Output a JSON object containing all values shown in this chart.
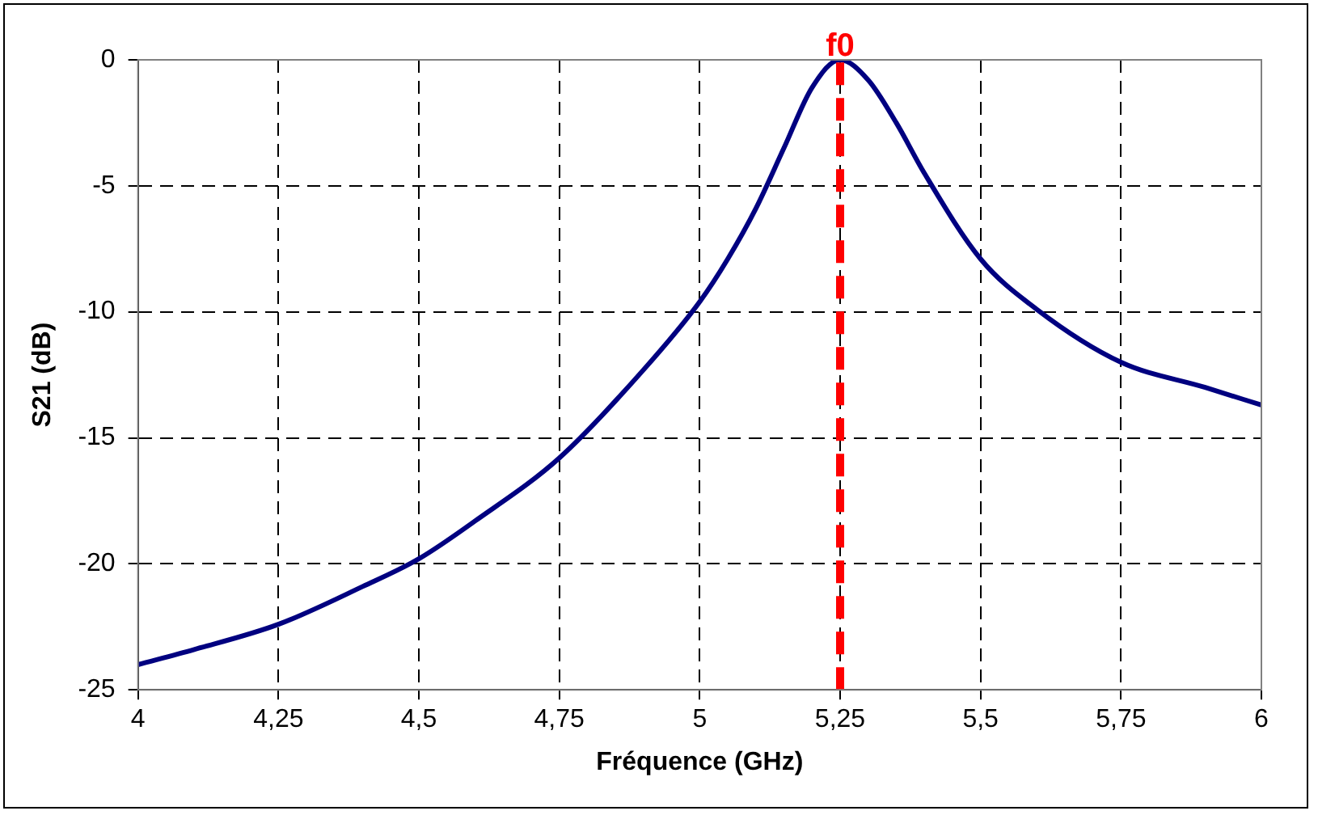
{
  "chart_data": {
    "type": "line",
    "xlabel": "Fréquence (GHz)",
    "ylabel": "S21 (dB)",
    "x": [
      4,
      4.1,
      4.25,
      4.4,
      4.5,
      4.6,
      4.75,
      4.9,
      5,
      5.05,
      5.1,
      5.15,
      5.2,
      5.25,
      5.3,
      5.35,
      5.4,
      5.5,
      5.6,
      5.75,
      5.9,
      6
    ],
    "series": [
      {
        "color": "#000080",
        "values": [
          -24,
          -23.4,
          -22.4,
          -20.9,
          -19.8,
          -18.3,
          -15.8,
          -12.3,
          -9.6,
          -7.9,
          -5.9,
          -3.5,
          -1.1,
          0,
          -0.8,
          -2.5,
          -4.5,
          -7.9,
          -9.9,
          -12,
          -13,
          -13.7
        ]
      }
    ],
    "xlim": [
      4,
      6
    ],
    "xticks": [
      {
        "value": 4,
        "label": "4"
      },
      {
        "value": 4.25,
        "label": "4,25"
      },
      {
        "value": 4.5,
        "label": "4,5"
      },
      {
        "value": 4.75,
        "label": "4,75"
      },
      {
        "value": 5,
        "label": "5"
      },
      {
        "value": 5.25,
        "label": "5,25"
      },
      {
        "value": 5.5,
        "label": "5,5"
      },
      {
        "value": 5.75,
        "label": "5,75"
      },
      {
        "value": 6,
        "label": "6"
      }
    ],
    "ylim": [
      -25,
      0
    ],
    "yticks": [
      -25,
      -20,
      -15,
      -10,
      -5,
      0
    ],
    "grid": true,
    "legend": false,
    "marker": "none",
    "line_style": "solid",
    "ref_lines": [
      {
        "axis": "x",
        "value": 5.25,
        "label": "f0",
        "color": "#ff0000",
        "line_style": "dashed"
      }
    ]
  }
}
